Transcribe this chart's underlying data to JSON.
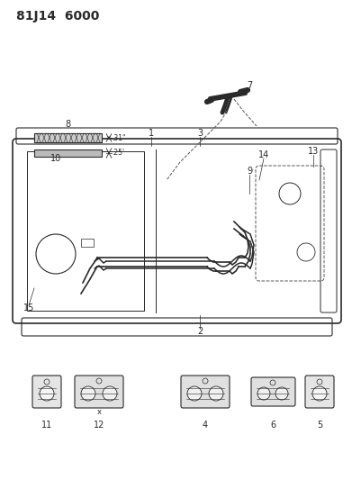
{
  "title": "81J14 6000",
  "bg_color": "#ffffff",
  "line_color": "#2a2a2a",
  "dashed_color": "#555555",
  "title_fontsize": 10,
  "label_fontsize": 7,
  "dim_fontsize": 5.5
}
